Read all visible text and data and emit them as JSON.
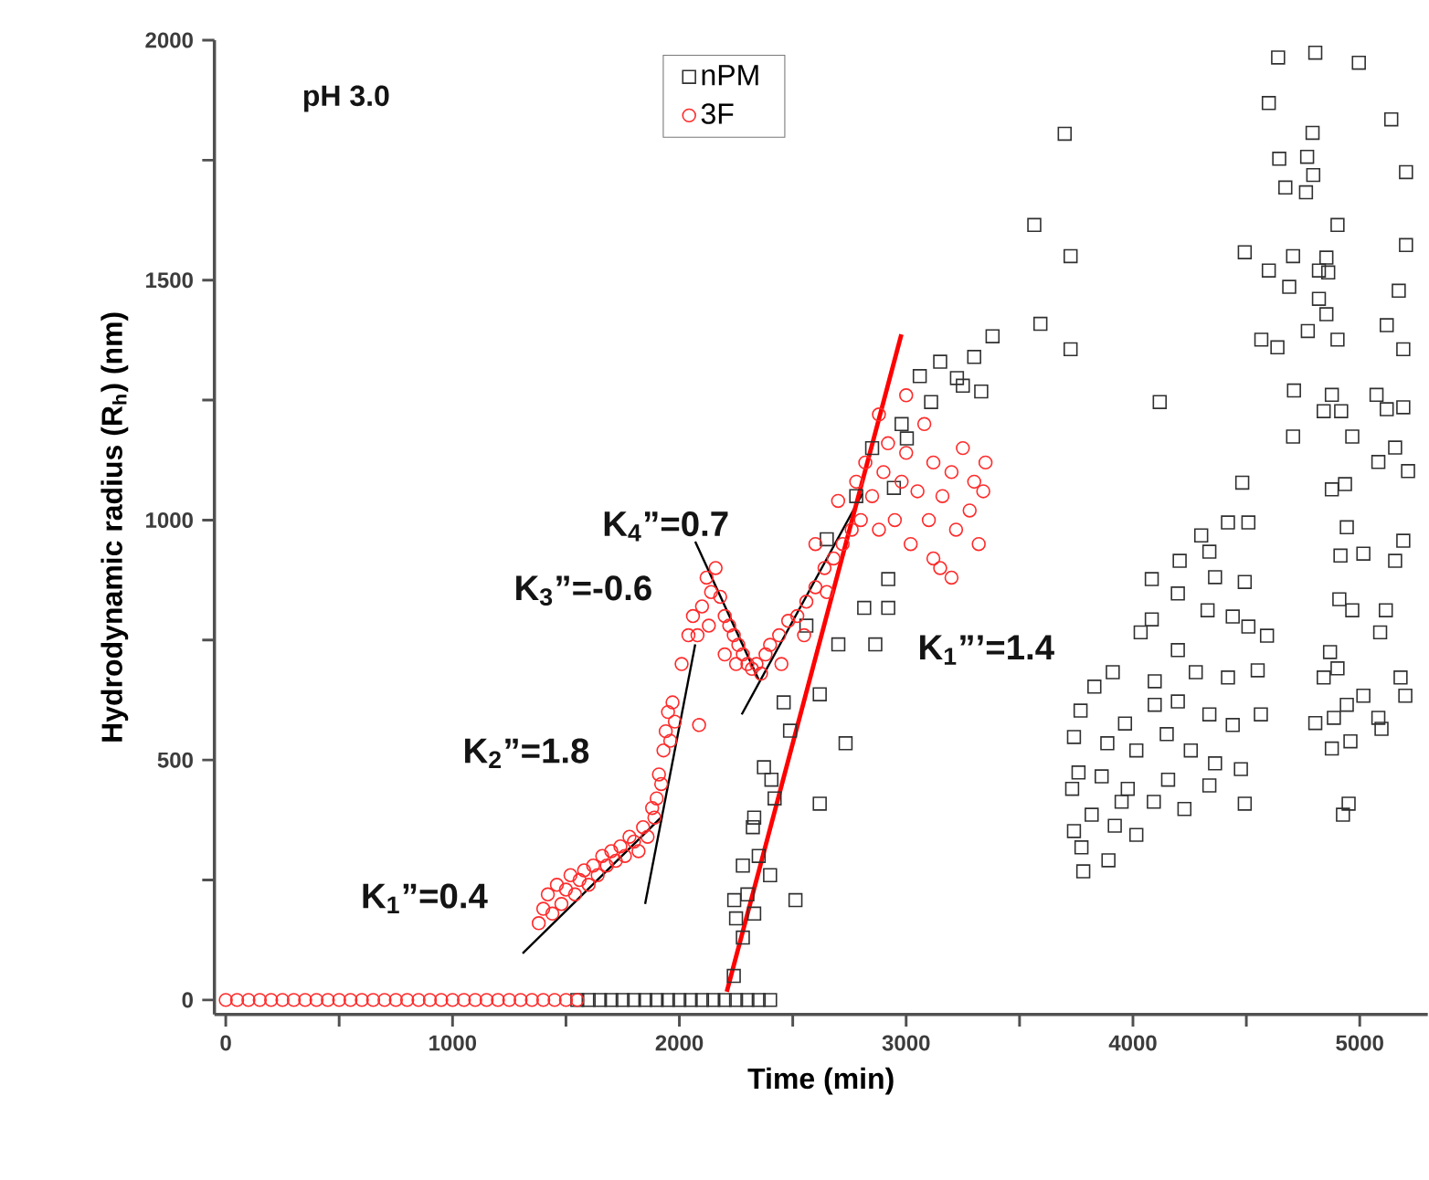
{
  "chart_data": {
    "type": "scatter",
    "xlabel": "Time (min)",
    "ylabel": "Hydrodynamic radius (R$_{h}$) (nm)",
    "xlim": [
      -50,
      5300
    ],
    "ylim": [
      -30,
      2000
    ],
    "xticks": [
      0,
      {
        "value": 500,
        "label": null
      },
      1000,
      {
        "value": 1500,
        "label": null
      },
      2000,
      {
        "value": 2500,
        "label": null
      },
      3000,
      {
        "value": 3500,
        "label": null
      },
      4000,
      {
        "value": 4500,
        "label": null
      },
      5000
    ],
    "yticks": [
      0,
      {
        "value": 250,
        "label": null
      },
      500,
      {
        "value": 750,
        "label": null
      },
      1000,
      {
        "value": 1250,
        "label": null
      },
      1500,
      {
        "value": 1750,
        "label": null
      },
      2000
    ],
    "grid": false,
    "legend": "top",
    "annotations": [
      "pH 3.0",
      "K$_{1}$”=0.4",
      "K$_{2}$”=1.8",
      "K$_{3}$”=-0.6",
      "K$_{4}$”=0.7",
      "K$_{1}$”’=1.4"
    ],
    "series": [
      {
        "name": "nPM",
        "marker": "square",
        "color": "#303030",
        "x": [
          1550,
          1600,
          1650,
          1700,
          1750,
          1800,
          1850,
          1900,
          1950,
          2000,
          2050,
          2100,
          2150,
          2200,
          2250,
          2300,
          2350,
          2400,
          2240,
          2280,
          2250,
          2300,
          2330,
          2280,
          2350,
          2400,
          2330,
          2420,
          2373,
          2242,
          2324,
          2406,
          2488,
          2512,
          2619,
          2619,
          2701,
          2733,
          2815,
          2864,
          2921,
          2921,
          2946,
          3003,
          3110,
          3224,
          3331,
          3381,
          2460,
          2560,
          2650,
          2780,
          2850,
          2980,
          3060,
          3150,
          3250,
          3300,
          3699,
          3565,
          3725,
          3592,
          3725,
          4118,
          4640,
          4804,
          4996,
          5139,
          5204,
          4599,
          4792,
          4645,
          4768,
          4795,
          4672,
          4763,
          4902,
          4493,
          4706,
          4853,
          4599,
          4689,
          4820,
          4861,
          4820,
          4853,
          5204,
          5172,
          5119,
          5192,
          4566,
          4637,
          4771,
          4902,
          4710,
          4841,
          4877,
          4918,
          5074,
          5119,
          5192,
          4706,
          4967,
          5082,
          5156,
          5213,
          4877,
          4935,
          4943,
          5016,
          4915,
          5156,
          5192,
          4910,
          4967,
          5115,
          5090,
          4869,
          4902,
          4841,
          5016,
          5180,
          5201,
          4804,
          4886,
          4943,
          5082,
          5096,
          4959,
          4877,
          4951,
          4926,
          4482,
          4419,
          4509,
          4301,
          4337,
          4206,
          4083,
          4362,
          4493,
          4198,
          4329,
          4083,
          4440,
          4509,
          4591,
          4198,
          4034,
          3911,
          3830,
          4096,
          4277,
          4419,
          4550,
          3769,
          3965,
          4096,
          4198,
          4337,
          4440,
          4564,
          3740,
          3887,
          4015,
          4149,
          4255,
          4362,
          4476,
          3732,
          3862,
          3977,
          4092,
          4227,
          4337,
          4493,
          3740,
          3818,
          3920,
          4015,
          3773,
          3892,
          3781,
          3760,
          3950,
          4155
        ],
        "values": [
          0,
          0,
          0,
          0,
          0,
          0,
          0,
          0,
          0,
          0,
          0,
          0,
          0,
          0,
          0,
          0,
          0,
          0,
          50,
          130,
          170,
          220,
          180,
          280,
          300,
          260,
          380,
          420,
          485,
          208,
          360,
          459,
          561,
          208,
          637,
          409,
          741,
          535,
          817,
          741,
          877,
          817,
          1067,
          1170,
          1246,
          1296,
          1268,
          1383,
          620,
          780,
          960,
          1050,
          1150,
          1200,
          1300,
          1330,
          1280,
          1340,
          1805,
          1615,
          1550,
          1409,
          1356,
          1246,
          1964,
          1974,
          1953,
          1835,
          1725,
          1869,
          1807,
          1753,
          1757,
          1719,
          1693,
          1683,
          1615,
          1558,
          1550,
          1547,
          1520,
          1486,
          1520,
          1516,
          1461,
          1429,
          1573,
          1478,
          1406,
          1356,
          1376,
          1360,
          1394,
          1376,
          1270,
          1227,
          1261,
          1227,
          1261,
          1231,
          1235,
          1174,
          1174,
          1121,
          1151,
          1102,
          1064,
          1075,
          985,
          930,
          926,
          915,
          957,
          835,
          812,
          812,
          766,
          725,
          691,
          672,
          634,
          672,
          634,
          577,
          588,
          615,
          588,
          565,
          539,
          524,
          409,
          386,
          1078,
          995,
          995,
          968,
          934,
          915,
          877,
          881,
          871,
          847,
          812,
          793,
          799,
          778,
          759,
          729,
          766,
          683,
          653,
          664,
          683,
          672,
          687,
          603,
          576,
          615,
          622,
          595,
          573,
          595,
          548,
          535,
          520,
          554,
          520,
          493,
          481,
          440,
          466,
          440,
          413,
          398,
          447,
          409,
          352,
          386,
          363,
          344,
          318,
          291,
          268,
          474,
          413,
          459
        ]
      },
      {
        "name": "3F",
        "marker": "circle",
        "color": "#ff2a2a",
        "x": [
          0,
          50,
          100,
          150,
          200,
          250,
          300,
          350,
          400,
          450,
          500,
          550,
          600,
          650,
          700,
          750,
          800,
          850,
          900,
          950,
          1000,
          1050,
          1100,
          1150,
          1200,
          1250,
          1300,
          1350,
          1400,
          1450,
          1500,
          1550,
          1380,
          1400,
          1420,
          1440,
          1460,
          1480,
          1500,
          1520,
          1540,
          1560,
          1580,
          1600,
          1620,
          1640,
          1660,
          1680,
          1700,
          1720,
          1740,
          1760,
          1780,
          1800,
          1820,
          1840,
          1860,
          1880,
          1890,
          1900,
          1910,
          1920,
          1930,
          1940,
          1950,
          1960,
          1970,
          1980,
          2010,
          2040,
          2060,
          2080,
          2087,
          2100,
          2120,
          2140,
          2160,
          2180,
          2200,
          2220,
          2240,
          2260,
          2280,
          2300,
          2320,
          2340,
          2360,
          2130,
          2200,
          2250,
          2380,
          2400,
          2440,
          2480,
          2520,
          2560,
          2600,
          2640,
          2680,
          2720,
          2760,
          2800,
          2450,
          2550,
          2650,
          2700,
          2780,
          2600,
          2820,
          2850,
          2880,
          2900,
          2920,
          2950,
          2980,
          3000,
          3020,
          3050,
          3080,
          3100,
          3120,
          3150,
          3160,
          3200,
          3220,
          3250,
          3280,
          3300,
          3320,
          3340,
          3350,
          2880,
          3000,
          3120,
          3200
        ],
        "values": [
          0,
          0,
          0,
          0,
          0,
          0,
          0,
          0,
          0,
          0,
          0,
          0,
          0,
          0,
          0,
          0,
          0,
          0,
          0,
          0,
          0,
          0,
          0,
          0,
          0,
          0,
          0,
          0,
          0,
          0,
          0,
          0,
          160,
          190,
          220,
          180,
          240,
          200,
          230,
          260,
          220,
          250,
          270,
          240,
          280,
          260,
          300,
          280,
          310,
          290,
          320,
          300,
          340,
          330,
          310,
          360,
          340,
          400,
          380,
          420,
          470,
          450,
          520,
          560,
          600,
          540,
          620,
          580,
          700,
          760,
          800,
          760,
          573,
          820,
          880,
          850,
          900,
          840,
          800,
          780,
          760,
          740,
          720,
          700,
          690,
          700,
          680,
          780,
          720,
          700,
          720,
          740,
          760,
          790,
          800,
          830,
          860,
          900,
          920,
          950,
          980,
          1000,
          700,
          760,
          850,
          1040,
          1080,
          950,
          1120,
          1050,
          980,
          1100,
          1160,
          1000,
          1080,
          1140,
          950,
          1060,
          1200,
          1000,
          1120,
          900,
          1050,
          1100,
          980,
          1150,
          1020,
          1080,
          950,
          1060,
          1120,
          1220,
          1260,
          920,
          880
        ]
      },
      {
        "type": "line",
        "color": "#000000",
        "x": [
          1309,
          1923
        ],
        "values": [
          97,
          382
        ]
      },
      {
        "type": "line",
        "color": "#000000",
        "x": [
          1849,
          2070
        ],
        "values": [
          200,
          741
        ]
      },
      {
        "type": "line",
        "color": "#000000",
        "x": [
          2070,
          2349
        ],
        "values": [
          955,
          668
        ]
      },
      {
        "type": "line",
        "color": "#000000",
        "x": [
          2275,
          2807
        ],
        "values": [
          595,
          1055
        ]
      },
      {
        "type": "line",
        "color": "#ff0000",
        "x": [
          2209,
          2979
        ],
        "values": [
          17,
          1387
        ]
      }
    ]
  }
}
